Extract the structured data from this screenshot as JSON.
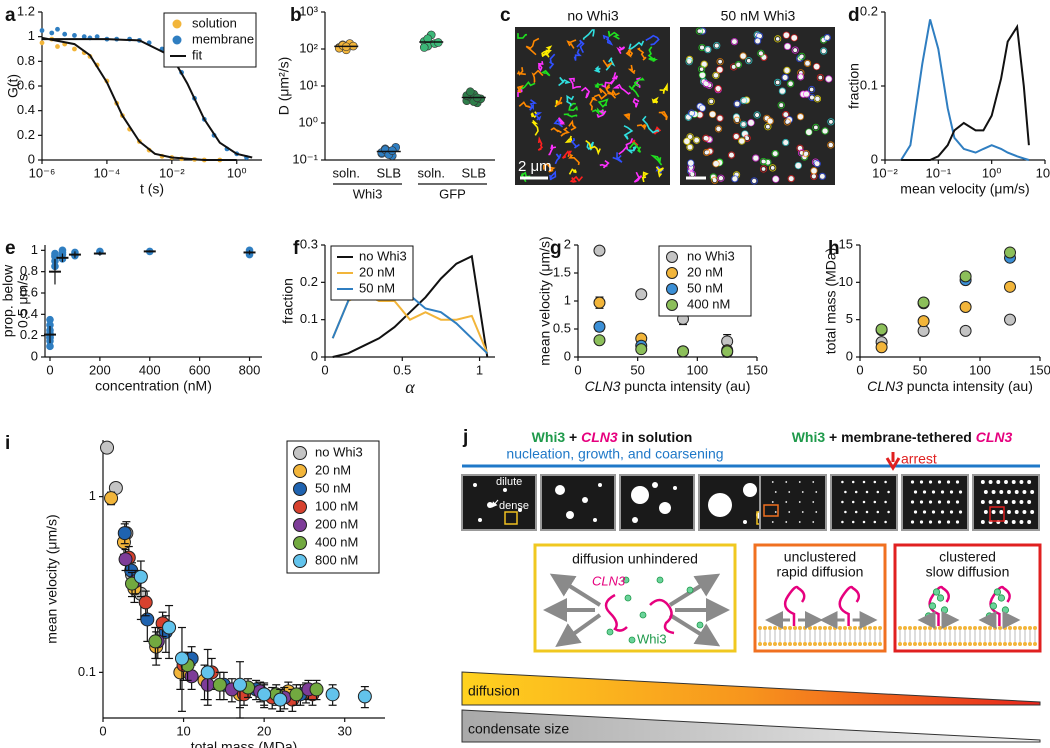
{
  "chart_data": [
    {
      "panel": "a",
      "type": "line",
      "xlabel": "t (s)",
      "ylabel": "G(t)",
      "xlog": true,
      "xlim": [
        1e-06,
        6
      ],
      "xticks": [
        {
          "value": 1e-06,
          "label": "10⁻⁶"
        },
        {
          "value": 0.0001,
          "label": "10⁻⁴"
        },
        {
          "value": 0.01,
          "label": "10⁻²"
        },
        {
          "value": 1,
          "label": "10⁰"
        }
      ],
      "ylim": [
        0,
        1.2
      ],
      "yticks": [
        0,
        0.2,
        0.4,
        0.6,
        0.8,
        1,
        1.2
      ],
      "legend": "upper right",
      "series": [
        {
          "name": "solution",
          "color": "#f2b53a",
          "style": "points",
          "x": [
            1e-06,
            2e-06,
            3e-06,
            5e-06,
            1e-05,
            2e-05,
            3e-05,
            5e-05,
            0.0001,
            0.0002,
            0.0003,
            0.0005,
            0.001,
            0.002,
            0.005,
            0.01,
            0.02,
            0.05,
            0.1,
            0.3
          ],
          "values": [
            0.95,
            0.98,
            0.92,
            0.94,
            0.9,
            0.87,
            0.84,
            0.77,
            0.64,
            0.46,
            0.36,
            0.25,
            0.15,
            0.08,
            0.03,
            0.02,
            0.01,
            0.005,
            0,
            0
          ]
        },
        {
          "name": "membrane",
          "color": "#2f7ec1",
          "style": "points",
          "x": [
            1e-06,
            2e-06,
            3e-06,
            5e-06,
            1e-05,
            2e-05,
            3e-05,
            5e-05,
            0.0001,
            0.0002,
            0.0005,
            0.001,
            0.002,
            0.005,
            0.01,
            0.02,
            0.05,
            0.1,
            0.2,
            0.5,
            1,
            2
          ],
          "values": [
            1.05,
            1.03,
            1.06,
            1.02,
            1.01,
            1,
            0.99,
            1,
            0.98,
            0.98,
            0.98,
            0.97,
            0.95,
            0.9,
            0.84,
            0.71,
            0.5,
            0.33,
            0.2,
            0.09,
            0.05,
            0.02
          ]
        },
        {
          "name": "fit",
          "color": "#111111",
          "style": "line",
          "x": [
            1e-06,
            1e-05,
            3e-05,
            0.0001,
            0.0003,
            0.001,
            0.003,
            0.01,
            0.1,
            1,
            null,
            1e-06,
            0.0001,
            0.001,
            0.01,
            0.03,
            0.1,
            0.3,
            1,
            3
          ],
          "values": [
            0.99,
            0.94,
            0.85,
            0.63,
            0.36,
            0.15,
            0.05,
            0.02,
            0,
            0,
            null,
            0.98,
            0.98,
            0.97,
            0.84,
            0.62,
            0.33,
            0.14,
            0.05,
            0.02
          ]
        }
      ]
    },
    {
      "panel": "b",
      "type": "strip",
      "ylabel": "D (μm²/s)",
      "ylog": true,
      "ylim": [
        0.1,
        1000
      ],
      "yticks": [
        {
          "value": 0.1,
          "label": "10⁻¹"
        },
        {
          "value": 1,
          "label": "10⁰"
        },
        {
          "value": 10,
          "label": "10¹"
        },
        {
          "value": 100,
          "label": "10²"
        },
        {
          "value": 1000,
          "label": "10³"
        }
      ],
      "categories": [
        "soln.",
        "SLB",
        "soln.",
        "SLB"
      ],
      "groups": [
        "Whi3",
        "GFP"
      ],
      "colors": [
        "#f2b53a",
        "#2f7ec1",
        "#3cb878",
        "#2e7d4a"
      ],
      "values": [
        [
          110,
          130,
          95,
          140,
          120,
          105,
          125,
          115
        ],
        [
          0.15,
          0.2,
          0.17,
          0.13,
          0.22,
          0.16,
          0.19,
          0.14,
          0.18
        ],
        [
          160,
          120,
          240,
          140,
          150,
          110,
          190
        ],
        [
          4,
          5,
          6,
          3.5,
          4.5,
          5.5,
          7,
          3.8,
          4.8
        ]
      ],
      "means": [
        118,
        0.17,
        155,
        4.9
      ]
    },
    {
      "panel": "d",
      "type": "line",
      "xlabel": "mean velocity (μm/s)",
      "ylabel": "fraction",
      "xlog": true,
      "xlim": [
        0.01,
        10
      ],
      "xticks": [
        {
          "value": 0.01,
          "label": "10⁻²"
        },
        {
          "value": 0.1,
          "label": "10⁻¹"
        },
        {
          "value": 1,
          "label": "10⁰"
        },
        {
          "value": 10,
          "label": "10¹"
        }
      ],
      "ylim": [
        0,
        0.2
      ],
      "yticks": [
        0,
        0.1,
        0.2
      ],
      "x": [
        0.02,
        0.03,
        0.05,
        0.07,
        0.1,
        0.15,
        0.2,
        0.3,
        0.5,
        0.7,
        1,
        1.5,
        2,
        3,
        4,
        5
      ],
      "series": [
        {
          "color": "#2f7ec1",
          "style": "line",
          "values": [
            0,
            0.02,
            0.13,
            0.19,
            0.15,
            0.07,
            0.03,
            0.015,
            0.01,
            0.015,
            0.02,
            0.015,
            0.01,
            0.005,
            0.002,
            0
          ]
        },
        {
          "color": "#111111",
          "style": "line",
          "values": [
            0,
            0,
            0,
            0,
            0.005,
            0.02,
            0.04,
            0.05,
            0.04,
            0.04,
            0.06,
            0.11,
            0.16,
            0.18,
            0.1,
            0.02
          ]
        }
      ]
    },
    {
      "panel": "e",
      "type": "scatter",
      "xlabel": "concentration (nM)",
      "ylabel": [
        "prop. below",
        "0.5 μm/s"
      ],
      "xlim": [
        -20,
        850
      ],
      "xticks": [
        0,
        200,
        400,
        600,
        800
      ],
      "ylim": [
        0,
        1.05
      ],
      "yticks": [
        0,
        0.2,
        0.4,
        0.6,
        0.8,
        1
      ],
      "series": [
        {
          "color": "#2f7ec1",
          "x": [
            0,
            0,
            0,
            0,
            0,
            0,
            0,
            0,
            0,
            20,
            20,
            20,
            20,
            20,
            50,
            50,
            50,
            50,
            100,
            100,
            200,
            400,
            800,
            800
          ],
          "values": [
            0.1,
            0.15,
            0.18,
            0.2,
            0.22,
            0.25,
            0.3,
            0.35,
            0.18,
            0.85,
            0.9,
            0.94,
            0.97,
            0.95,
            0.92,
            0.96,
            0.98,
            1,
            0.95,
            0.98,
            0.99,
            0.99,
            0.96,
            1
          ]
        }
      ],
      "summary": {
        "x": [
          0,
          20,
          50,
          100,
          200,
          400,
          800
        ],
        "means": [
          0.21,
          0.8,
          0.93,
          0.96,
          0.97,
          0.99,
          0.98
        ],
        "errors": [
          0.08,
          0.12,
          0.04,
          0.03,
          0.02,
          0.01,
          0.02
        ]
      }
    },
    {
      "panel": "f",
      "type": "line",
      "xlabel": "α",
      "ylabel": "fraction",
      "xlim": [
        0,
        1.1
      ],
      "xticks": [
        0,
        0.5,
        1
      ],
      "ylim": [
        0,
        0.3
      ],
      "yticks": [
        0,
        0.1,
        0.2,
        0.3
      ],
      "legend": "upper left",
      "x": [
        0.05,
        0.15,
        0.25,
        0.35,
        0.45,
        0.55,
        0.65,
        0.75,
        0.85,
        0.95,
        1.05
      ],
      "series": [
        {
          "name": "no Whi3",
          "color": "#111111",
          "style": "line",
          "values": [
            0,
            0.01,
            0.03,
            0.05,
            0.08,
            0.12,
            0.16,
            0.21,
            0.25,
            0.27,
            0
          ]
        },
        {
          "name": "20 nM",
          "color": "#f2b53a",
          "style": "line",
          "values": [
            0.05,
            0.15,
            0.17,
            0.15,
            0.15,
            0.1,
            0.12,
            0.1,
            0.1,
            0.11,
            0.01
          ]
        },
        {
          "name": "50 nM",
          "color": "#2f7ec1",
          "style": "line",
          "values": [
            0.05,
            0.15,
            0.23,
            0.245,
            0.215,
            0.165,
            0.13,
            0.12,
            0.09,
            0.05,
            0.01
          ]
        }
      ]
    },
    {
      "panel": "g",
      "type": "scatter",
      "xlabel": [
        "CLN3",
        " puncta intensity (au)"
      ],
      "ylabel": "mean velocity (μm/s)",
      "xlim": [
        0,
        150
      ],
      "xticks": [
        0,
        50,
        100,
        150
      ],
      "ylim": [
        0,
        2
      ],
      "yticks": [
        0,
        0.5,
        1,
        1.5,
        2
      ],
      "legend": "upper right",
      "x": [
        18,
        53,
        88,
        125
      ],
      "series": [
        {
          "name": "no Whi3",
          "color": "#c4c4c4",
          "values": [
            1.9,
            1.12,
            0.68,
            0.28
          ],
          "errors": [
            0.05,
            0.05,
            0.1,
            0.12
          ]
        },
        {
          "name": "20 nM",
          "color": "#f2b53a",
          "values": [
            0.97,
            0.33,
            0.1,
            0.12
          ],
          "errors": [
            0.1,
            0.06,
            0.02,
            0.02
          ]
        },
        {
          "name": "50 nM",
          "color": "#3b8fd6",
          "values": [
            0.54,
            0.2,
            0.1,
            0.09
          ],
          "errors": [
            0.08,
            0.04,
            0.02,
            0.02
          ]
        },
        {
          "name": "400 nM",
          "color": "#8cbf5a",
          "values": [
            0.3,
            0.14,
            0.1,
            0.1
          ],
          "errors": [
            0.05,
            0.03,
            0.02,
            0.02
          ]
        }
      ]
    },
    {
      "panel": "h",
      "type": "scatter",
      "xlabel": [
        "CLN3",
        " puncta intensity (au)"
      ],
      "ylabel": "total mass (MDa)",
      "xlim": [
        0,
        150
      ],
      "xticks": [
        0,
        50,
        100,
        150
      ],
      "ylim": [
        0,
        15
      ],
      "yticks": [
        0,
        5,
        10,
        15
      ],
      "x": [
        18,
        53,
        88,
        125
      ],
      "series": [
        {
          "color": "#c4c4c4",
          "values": [
            2,
            3.5,
            3.5,
            5
          ],
          "errors": [
            0.2,
            0.3,
            0.3,
            0.3
          ]
        },
        {
          "color": "#f2b53a",
          "values": [
            1.3,
            4.8,
            6.7,
            9.4
          ],
          "errors": [
            0.3,
            0.3,
            0.4,
            0.4
          ]
        },
        {
          "color": "#3b8fd6",
          "values": [
            3.6,
            7.2,
            10.3,
            13.3
          ],
          "errors": [
            0.3,
            0.4,
            0.4,
            0.5
          ]
        },
        {
          "color": "#8cbf5a",
          "values": [
            3.7,
            7.3,
            10.8,
            14
          ],
          "errors": [
            0.3,
            0.4,
            0.4,
            0.5
          ]
        }
      ]
    },
    {
      "panel": "i",
      "type": "scatter",
      "xlabel": "total mass (MDa)",
      "ylabel": "mean velocity (μm/s)",
      "xlim": [
        0,
        35
      ],
      "xticks": [
        0,
        10,
        20,
        30
      ],
      "ylog": true,
      "ylim": [
        0.055,
        2.1
      ],
      "yticks": [
        0.1,
        1
      ],
      "legend": "upper right",
      "series": [
        {
          "name": "no Whi3",
          "color": "#c4c4c4",
          "x": [
            0.5,
            1.6,
            2.9,
            3.6,
            4.7
          ],
          "values": [
            1.9,
            1.12,
            0.62,
            0.36,
            0.28
          ],
          "errors": [
            0.05,
            0.06,
            0.1,
            0.06,
            0.08
          ]
        },
        {
          "name": "20 nM",
          "color": "#f2b53a",
          "x": [
            1,
            2.6,
            3.9,
            6.6,
            9.6,
            12.6,
            17,
            20,
            23,
            25.2
          ],
          "values": [
            0.98,
            0.55,
            0.3,
            0.14,
            0.1,
            0.09,
            0.075,
            0.075,
            0.078,
            0.077
          ],
          "errors": [
            0.08,
            0.08,
            0.05,
            0.03,
            0.02,
            0.02,
            0.012,
            0.01,
            0.01,
            0.01
          ]
        },
        {
          "name": "50 nM",
          "color": "#1f63b0",
          "x": [
            2.7,
            3.5,
            5.5,
            7.8,
            11,
            15,
            19,
            22,
            24.5
          ],
          "values": [
            0.62,
            0.38,
            0.2,
            0.17,
            0.12,
            0.085,
            0.08,
            0.07,
            0.075
          ],
          "errors": [
            0.08,
            0.06,
            0.05,
            0.04,
            0.02,
            0.015,
            0.01,
            0.01,
            0.01
          ]
        },
        {
          "name": "100 nM",
          "color": "#d7412e",
          "x": [
            3.2,
            5.3,
            7.4,
            10,
            13.5,
            17.5,
            21,
            23.5,
            26
          ],
          "values": [
            0.45,
            0.25,
            0.19,
            0.11,
            0.1,
            0.075,
            0.072,
            0.07,
            0.075
          ],
          "errors": [
            0.07,
            0.04,
            0.03,
            0.02,
            0.02,
            0.01,
            0.01,
            0.01,
            0.01
          ]
        },
        {
          "name": "200 nM",
          "color": "#7d3c98",
          "x": [
            2.8,
            4,
            6.8,
            11,
            13,
            16,
            19.5,
            22.5,
            25.5
          ],
          "values": [
            0.44,
            0.33,
            0.15,
            0.095,
            0.085,
            0.08,
            0.078,
            0.072,
            0.08
          ],
          "errors": [
            0.06,
            0.05,
            0.03,
            0.015,
            0.015,
            0.012,
            0.01,
            0.01,
            0.01
          ]
        },
        {
          "name": "400 nM",
          "color": "#72a940",
          "x": [
            3.6,
            6.5,
            10.5,
            14.5,
            18,
            21.5,
            24,
            26.5
          ],
          "values": [
            0.32,
            0.15,
            0.11,
            0.085,
            0.082,
            0.075,
            0.075,
            0.08
          ],
          "errors": [
            0.05,
            0.03,
            0.02,
            0.015,
            0.01,
            0.01,
            0.01,
            0.01
          ]
        },
        {
          "name": "800 nM",
          "color": "#62c3ec",
          "x": [
            4.7,
            8.2,
            9.8,
            13,
            17,
            20,
            22,
            28.5,
            32.5
          ],
          "values": [
            0.35,
            0.18,
            0.12,
            0.1,
            0.085,
            0.075,
            0.07,
            0.075,
            0.073
          ],
          "errors": [
            0.08,
            0.06,
            0.06,
            0.035,
            0.03,
            0.012,
            0.01,
            0.01,
            0.01
          ]
        }
      ]
    }
  ],
  "images": {
    "panel": "c",
    "left_label": "no Whi3",
    "right_label": "50 nM Whi3",
    "scale_bar": "2 μm"
  },
  "diagram": {
    "panel": "j",
    "left": {
      "title": [
        "Whi3",
        " + ",
        "CLN3",
        " in solution"
      ],
      "subtitle": "nucleation, growth, and coarsening",
      "dilute": "dilute",
      "dense": "dense",
      "box_title": "diffusion unhindered",
      "rna": "CLN3",
      "protein": "Whi3"
    },
    "right": {
      "title": [
        "Whi3",
        " + membrane-tethered ",
        "CLN3"
      ],
      "arrest": "arrest",
      "unclustered": [
        "unclustered",
        "rapid diffusion"
      ],
      "clustered": [
        "clustered",
        "slow diffusion"
      ]
    },
    "gradients": [
      "diffusion",
      "condensate size"
    ]
  }
}
